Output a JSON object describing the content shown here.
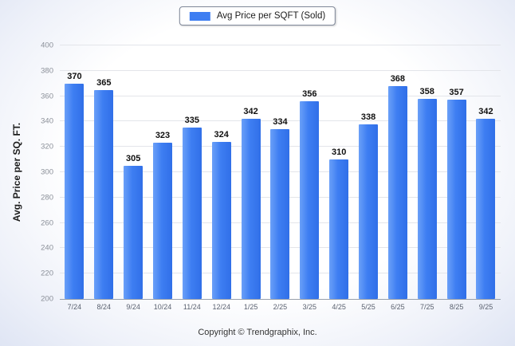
{
  "legend": {
    "label": "Avg Price per SQFT (Sold)",
    "swatch_color": "#3e7ef2"
  },
  "footer": {
    "copyright": "Copyright © Trendgraphix, Inc."
  },
  "chart_data": {
    "type": "bar",
    "title": "",
    "xlabel": "",
    "ylabel": "Avg. Price per SQ. FT.",
    "ylim": [
      200,
      400
    ],
    "ytick_step": 20,
    "grid": true,
    "legend_position": "top-center",
    "bar_color": "#3e7ef2",
    "categories": [
      "7/24",
      "8/24",
      "9/24",
      "10/24",
      "11/24",
      "12/24",
      "1/25",
      "2/25",
      "3/25",
      "4/25",
      "5/25",
      "6/25",
      "7/25",
      "8/25",
      "9/25"
    ],
    "series": [
      {
        "name": "Avg Price per SQFT (Sold)",
        "values": [
          370,
          365,
          305,
          323,
          335,
          324,
          342,
          334,
          356,
          310,
          338,
          368,
          358,
          357,
          342
        ]
      }
    ]
  }
}
